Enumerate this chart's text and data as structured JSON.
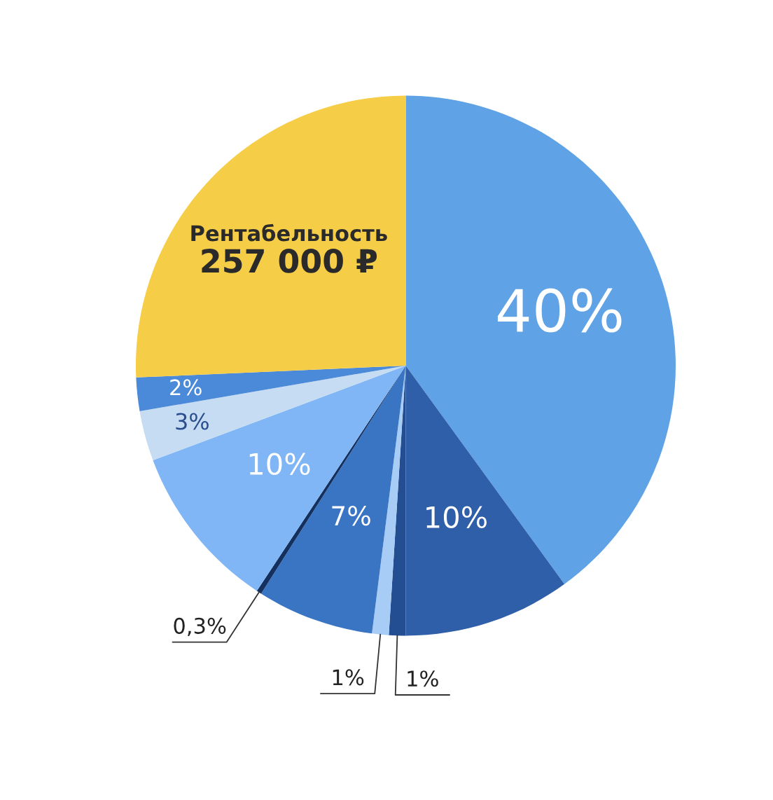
{
  "chart_data": {
    "type": "pie",
    "categories": [
      null,
      null,
      null,
      null,
      null,
      null,
      null,
      null,
      null,
      "Рентабельность"
    ],
    "values": [
      40,
      10,
      1,
      1,
      7,
      0.3,
      10,
      3,
      2,
      25.7
    ],
    "colors": [
      "#5fa2e6",
      "#2f5fa8",
      "#244e92",
      "#a7cdf7",
      "#3a75c4",
      "#14305f",
      "#80b6f5",
      "#c6dcf3",
      "#4a8ad8",
      "#f6cd47"
    ],
    "value_labels": [
      "40%",
      "10%",
      "1%",
      "1%",
      "7%",
      "0,3%",
      "10%",
      "3%",
      "2%",
      null
    ],
    "annotations": [
      "257 000 ₽"
    ]
  }
}
